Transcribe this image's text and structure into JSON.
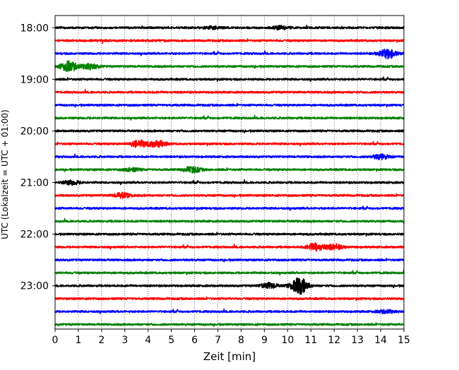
{
  "chart_data": {
    "type": "line",
    "title": "",
    "xlabel": "Zeit  [min]",
    "ylabel": "UTC (Lokalzeit = UTC + 01:00)",
    "xlim": [
      0,
      15
    ],
    "x_ticks": [
      "0",
      "1",
      "2",
      "3",
      "4",
      "5",
      "6",
      "7",
      "8",
      "9",
      "10",
      "11",
      "12",
      "13",
      "14",
      "15"
    ],
    "y_ticks": [
      "18:00",
      "19:00",
      "20:00",
      "21:00",
      "22:00",
      "23:00"
    ],
    "start_time": "18:00",
    "minutes_per_trace": 15,
    "grid": "vertical-dotted",
    "series_colors": [
      "#000000",
      "#ff0000",
      "#0000ff",
      "#008000"
    ],
    "traces": [
      {
        "time": "18:00",
        "color": "#000000",
        "events": [
          [
            6.8,
            0.25
          ],
          [
            9.7,
            0.3
          ]
        ]
      },
      {
        "time": "18:15",
        "color": "#ff0000",
        "events": []
      },
      {
        "time": "18:30",
        "color": "#0000ff",
        "events": [
          [
            14.3,
            0.9
          ]
        ]
      },
      {
        "time": "18:45",
        "color": "#008000",
        "events": [
          [
            0.6,
            1.0
          ],
          [
            1.5,
            0.5
          ]
        ]
      },
      {
        "time": "19:00",
        "color": "#000000",
        "events": []
      },
      {
        "time": "19:15",
        "color": "#ff0000",
        "events": []
      },
      {
        "time": "19:30",
        "color": "#0000ff",
        "events": []
      },
      {
        "time": "19:45",
        "color": "#008000",
        "events": []
      },
      {
        "time": "20:00",
        "color": "#000000",
        "events": []
      },
      {
        "time": "20:15",
        "color": "#ff0000",
        "events": [
          [
            3.6,
            0.7
          ],
          [
            4.4,
            0.6
          ]
        ]
      },
      {
        "time": "20:30",
        "color": "#0000ff",
        "events": [
          [
            14.0,
            0.45
          ]
        ]
      },
      {
        "time": "20:45",
        "color": "#008000",
        "events": [
          [
            5.9,
            0.55
          ],
          [
            3.3,
            0.3
          ]
        ]
      },
      {
        "time": "21:00",
        "color": "#000000",
        "events": [
          [
            0.7,
            0.4
          ]
        ]
      },
      {
        "time": "21:15",
        "color": "#ff0000",
        "events": [
          [
            2.9,
            0.45
          ]
        ]
      },
      {
        "time": "21:30",
        "color": "#0000ff",
        "events": []
      },
      {
        "time": "21:45",
        "color": "#008000",
        "events": []
      },
      {
        "time": "22:00",
        "color": "#000000",
        "events": []
      },
      {
        "time": "22:15",
        "color": "#ff0000",
        "events": [
          [
            11.2,
            0.75
          ],
          [
            12.0,
            0.5
          ]
        ]
      },
      {
        "time": "22:30",
        "color": "#0000ff",
        "events": []
      },
      {
        "time": "22:45",
        "color": "#008000",
        "events": []
      },
      {
        "time": "23:00",
        "color": "#000000",
        "events": [
          [
            10.5,
            1.6
          ],
          [
            9.2,
            0.5
          ]
        ]
      },
      {
        "time": "23:15",
        "color": "#ff0000",
        "events": []
      },
      {
        "time": "23:30",
        "color": "#0000ff",
        "events": [
          [
            14.2,
            0.3
          ]
        ]
      },
      {
        "time": "23:45",
        "color": "#008000",
        "events": []
      }
    ]
  }
}
